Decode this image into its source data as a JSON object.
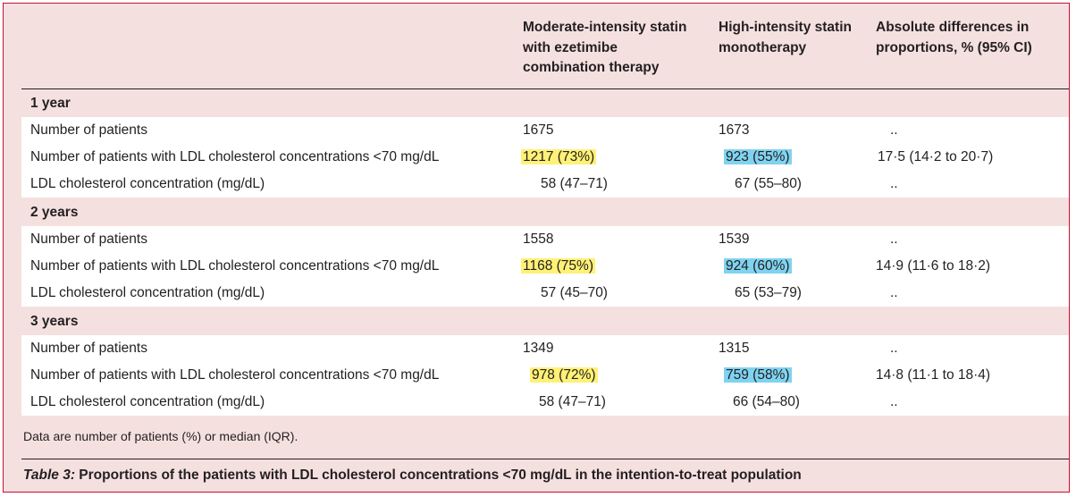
{
  "table": {
    "columns": [
      "Moderate-intensity statin with ezetimibe combination therapy",
      "High-intensity statin monotherapy",
      "Absolute differences in proportions, % (95% CI)"
    ],
    "column_lines": [
      [
        "Moderate-intensity statin",
        "with ezetimibe",
        "combination therapy"
      ],
      [
        "High-intensity statin",
        "monotherapy"
      ],
      [
        "Absolute differences in",
        "proportions, % (95% CI)"
      ]
    ],
    "sections": [
      {
        "label": "1 year",
        "rows": [
          {
            "label": "Number of patients",
            "combo": "1675",
            "mono": "1673",
            "diff": ".."
          },
          {
            "label": "Number of patients with LDL cholesterol concentrations <70 mg/dL",
            "combo": "1217 (73%)",
            "mono": "923 (55%)",
            "diff": "17·5 (14·2 to 20·7)"
          },
          {
            "label": "LDL cholesterol concentration (mg/dL)",
            "combo": "58 (47–71)",
            "mono": "67 (55–80)",
            "diff": ".."
          }
        ]
      },
      {
        "label": "2 years",
        "rows": [
          {
            "label": "Number of patients",
            "combo": "1558",
            "mono": "1539",
            "diff": ".."
          },
          {
            "label": "Number of patients with LDL cholesterol concentrations <70 mg/dL",
            "combo": "1168 (75%)",
            "mono": "924 (60%)",
            "diff": "14·9 (11·6 to 18·2)"
          },
          {
            "label": "LDL cholesterol concentration (mg/dL)",
            "combo": "57 (45–70)",
            "mono": "65 (53–79)",
            "diff": ".."
          }
        ]
      },
      {
        "label": "3 years",
        "rows": [
          {
            "label": "Number of patients",
            "combo": "1349",
            "mono": "1315",
            "diff": ".."
          },
          {
            "label": "Number of patients with LDL cholesterol concentrations <70 mg/dL",
            "combo": "978 (72%)",
            "mono": "759 (58%)",
            "diff": "14·8 (11·1 to 18·4)"
          },
          {
            "label": "LDL cholesterol concentration (mg/dL)",
            "combo": "58 (47–71)",
            "mono": "66 (54–80)",
            "diff": ".."
          }
        ]
      }
    ]
  },
  "footnote": "Data are number of patients (%) or median (IQR).",
  "caption": {
    "lead": "Table 3:",
    "text": " Proportions of the patients with LDL cholesterol concentrations <70 mg/dL in the intention-to-treat population"
  },
  "colors": {
    "frame_border": "#c8102e",
    "panel": "#f5e0e0",
    "highlight_yellow": "#fff176",
    "highlight_blue": "#7fd3f0"
  }
}
